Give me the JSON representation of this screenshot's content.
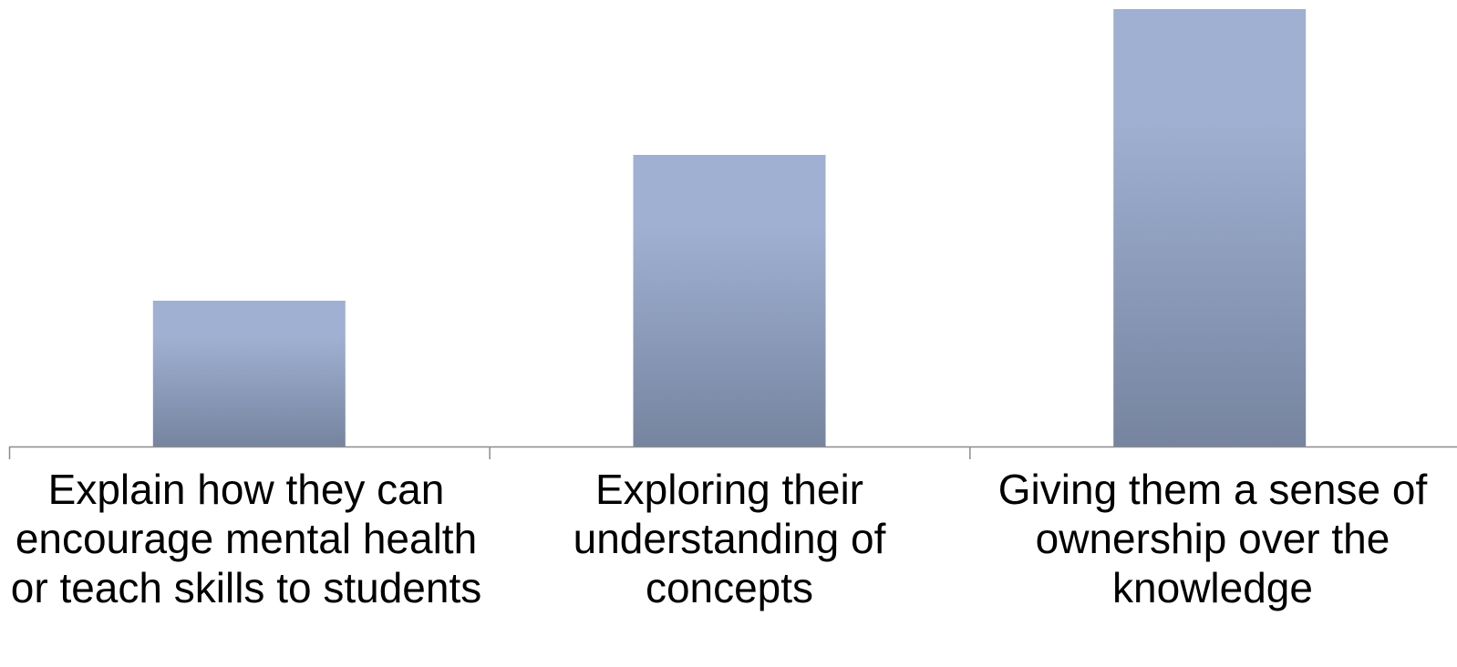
{
  "chart_data": {
    "type": "bar",
    "categories": [
      "Explain how they can encourage mental health or teach skills to students",
      "Exploring their understanding of concepts",
      "Giving them a sense of ownership over the knowledge"
    ],
    "values": [
      1,
      2,
      3
    ],
    "ylim": [
      0,
      3
    ],
    "title": "",
    "xlabel": "",
    "ylabel": "",
    "grid": false,
    "legend": "none",
    "colors": {
      "bar_top": "#9fb0d2",
      "bar_bottom": "#76849f",
      "axis": "#8c8c8c"
    }
  }
}
